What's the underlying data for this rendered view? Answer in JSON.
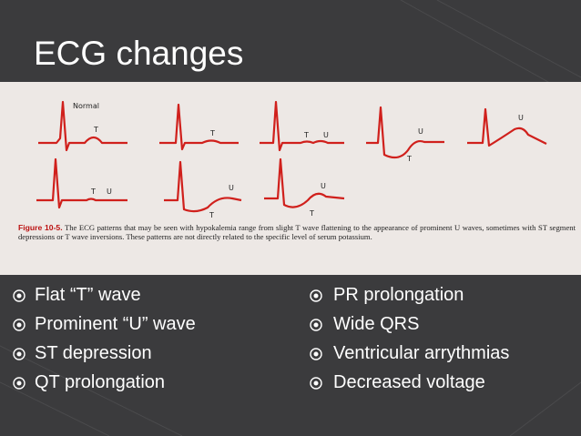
{
  "title": "ECG changes",
  "figure": {
    "traces": [
      {
        "labels": [
          "Normal",
          "T"
        ]
      },
      {
        "labels": [
          "T"
        ]
      },
      {
        "labels": [
          "T",
          "U"
        ]
      },
      {
        "labels": [
          "U",
          "T"
        ]
      },
      {
        "labels": [
          "U"
        ]
      },
      {
        "labels": [
          "T",
          "U"
        ]
      },
      {
        "labels": [
          "U",
          "T"
        ]
      },
      {
        "labels": [
          "U",
          "T"
        ]
      }
    ],
    "caption_label": "Figure 10-5.",
    "caption_text": "The ECG patterns that may be seen with hypokalemia range from slight T wave flattening to the appearance of prominent U waves, sometimes with ST segment depressions or T wave inversions. These patterns are not directly related to the specific level of serum potassium."
  },
  "bullets": {
    "left": [
      "Flat “T” wave",
      "Prominent “U” wave",
      "ST depression",
      "QT prolongation"
    ],
    "right": [
      "PR prolongation",
      "Wide QRS",
      "Ventricular arrythmias",
      "Decreased voltage"
    ]
  }
}
